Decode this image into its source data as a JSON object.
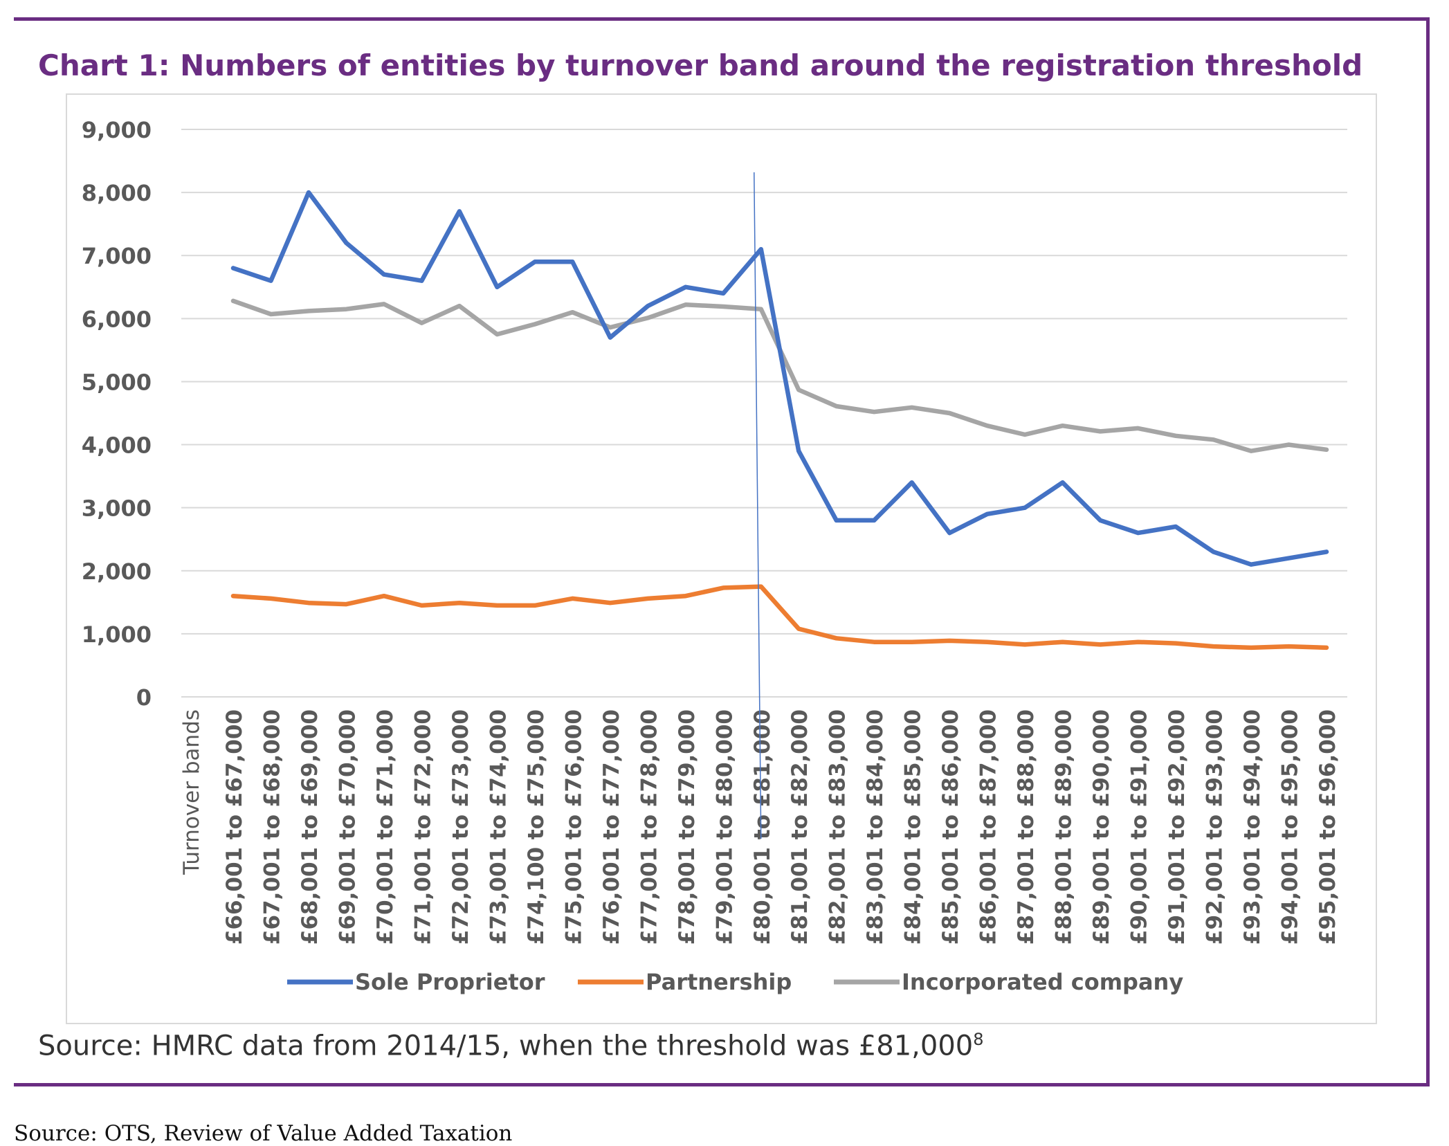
{
  "header": {
    "title": "Chart 1: Numbers of entities by turnover band around the registration threshold"
  },
  "footer": {
    "source_main": "Source: HMRC data from 2014/15, when the threshold was £81,000",
    "source_sup": "8",
    "source_credit": "Source: OTS, Review of Value Added Taxation"
  },
  "colors": {
    "frame": "#6a2d82",
    "title": "#6a2d82",
    "sole": "#4472c4",
    "partnership": "#ed7d31",
    "incorporated": "#a5a5a5",
    "gridline": "#d9d9d9",
    "threshold_line": "#4472c4"
  },
  "chart_data": {
    "type": "line",
    "title": "Chart 1: Numbers of entities by turnover band around the registration threshold",
    "xlabel": "Turnover bands",
    "ylabel": "",
    "ylim": [
      0,
      9000
    ],
    "yticks": [
      0,
      1000,
      2000,
      3000,
      4000,
      5000,
      6000,
      7000,
      8000,
      9000
    ],
    "ytick_labels": [
      "0",
      "1,000",
      "2,000",
      "3,000",
      "4,000",
      "5,000",
      "6,000",
      "7,000",
      "8,000",
      "9,000"
    ],
    "grid": true,
    "legend_position": "bottom",
    "categories": [
      "£66,001 to £67,000",
      "£67,001 to £68,000",
      "£68,001 to £69,000",
      "£69,001 to £70,000",
      "£70,001 to £71,000",
      "£71,001 to £72,000",
      "£72,001 to £73,000",
      "£73,001 to £74,000",
      "£74,100 to £75,000",
      "£75,001 to £76,000",
      "£76,001 to £77,000",
      "£77,001 to £78,000",
      "£78,001 to £79,000",
      "£79,001 to £80,000",
      "£80,001 to £81,000",
      "£81,001 to £82,000",
      "£82,001 to £83,000",
      "£83,001 to £84,000",
      "£84,001 to £85,000",
      "£85,001 to £86,000",
      "£86,001 to £87,000",
      "£87,001 to £88,000",
      "£88,001 to £89,000",
      "£89,001 to £90,000",
      "£90,001 to £91,000",
      "£91,001 to £92,000",
      "£92,001 to £93,000",
      "£93,001 to £94,000",
      "£94,001 to £95,000",
      "£95,001 to £96,000"
    ],
    "threshold_category_index": 14,
    "series": [
      {
        "name": "Sole Proprietor",
        "values": [
          6800,
          6600,
          8000,
          7200,
          6700,
          6600,
          7700,
          6500,
          6900,
          6900,
          5700,
          6200,
          6500,
          6400,
          7100,
          3900,
          2800,
          2800,
          3400,
          2600,
          2900,
          3000,
          3400,
          2800,
          2600,
          2700,
          2300,
          2100,
          2200,
          2300
        ]
      },
      {
        "name": "Partnership",
        "values": [
          1600,
          1560,
          1490,
          1470,
          1600,
          1450,
          1490,
          1450,
          1450,
          1560,
          1490,
          1560,
          1600,
          1730,
          1750,
          1080,
          930,
          870,
          870,
          890,
          870,
          830,
          870,
          830,
          870,
          850,
          800,
          780,
          800,
          780
        ]
      },
      {
        "name": "Incorporated company",
        "values": [
          6280,
          6070,
          6120,
          6150,
          6230,
          5930,
          6200,
          5750,
          5910,
          6100,
          5860,
          6010,
          6220,
          6190,
          6150,
          4870,
          4610,
          4520,
          4590,
          4500,
          4300,
          4160,
          4300,
          4210,
          4260,
          4140,
          4080,
          3900,
          4000,
          3920
        ]
      }
    ]
  }
}
